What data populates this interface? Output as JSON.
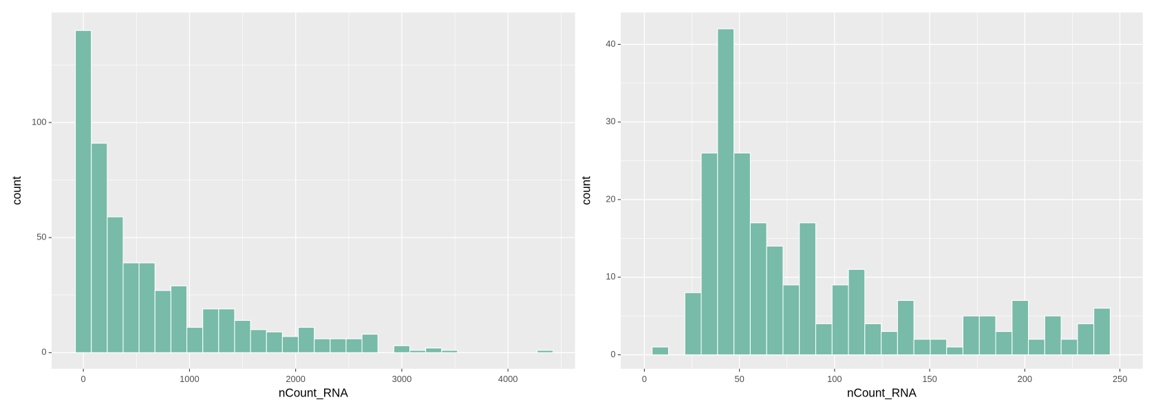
{
  "chart_data": [
    {
      "type": "histogram",
      "x_label": "nCount_RNA",
      "y_label": "count",
      "color": "#77bba8",
      "bins": [
        -75,
        75,
        225,
        375,
        525,
        675,
        825,
        975,
        1125,
        1275,
        1425,
        1575,
        1725,
        1875,
        2025,
        2175,
        2325,
        2475,
        2625,
        2775,
        2925,
        3075,
        3225,
        3375,
        3525,
        3675,
        3825,
        3975,
        4125,
        4275,
        4425
      ],
      "counts": [
        140,
        91,
        59,
        39,
        39,
        27,
        29,
        11,
        19,
        19,
        14,
        10,
        9,
        7,
        11,
        6,
        6,
        6,
        8,
        0,
        3,
        1,
        2,
        1,
        0,
        0,
        0,
        0,
        0,
        1
      ],
      "xlim": [
        -299,
        4632
      ],
      "ylim": [
        -7,
        147.8
      ],
      "xticks": [
        0,
        1000,
        2000,
        3000,
        4000
      ],
      "yticks": [
        0,
        50,
        100
      ],
      "x_minor_ticks": [
        500,
        1500,
        2500,
        3500,
        4500
      ],
      "y_minor_ticks": [
        25,
        75,
        125
      ],
      "grid": true
    },
    {
      "type": "histogram",
      "x_label": "nCount_RNA",
      "y_label": "count",
      "color": "#77bba8",
      "bins": [
        4.1,
        12.7,
        21.3,
        29.9,
        38.5,
        47.1,
        55.7,
        64.3,
        72.9,
        81.5,
        90.1,
        98.7,
        107.3,
        115.9,
        124.5,
        133.1,
        141.7,
        150.3,
        158.9,
        167.5,
        176.1,
        184.7,
        193.3,
        201.9,
        210.5,
        219.1,
        227.7,
        236.3,
        244.9
      ],
      "counts": [
        1,
        0,
        8,
        26,
        42,
        26,
        17,
        14,
        9,
        17,
        4,
        9,
        11,
        4,
        3,
        7,
        2,
        2,
        1,
        5,
        5,
        3,
        7,
        2,
        5,
        2,
        4,
        6
      ],
      "xlim": [
        -12.4,
        262
      ],
      "ylim": [
        -1.8,
        44.1
      ],
      "xticks": [
        0,
        50,
        100,
        150,
        200,
        250
      ],
      "yticks": [
        0,
        10,
        20,
        30,
        40
      ],
      "x_minor_ticks": [
        25,
        75,
        125,
        175,
        225
      ],
      "y_minor_ticks": [
        5,
        15,
        25,
        35
      ],
      "grid": true
    }
  ]
}
